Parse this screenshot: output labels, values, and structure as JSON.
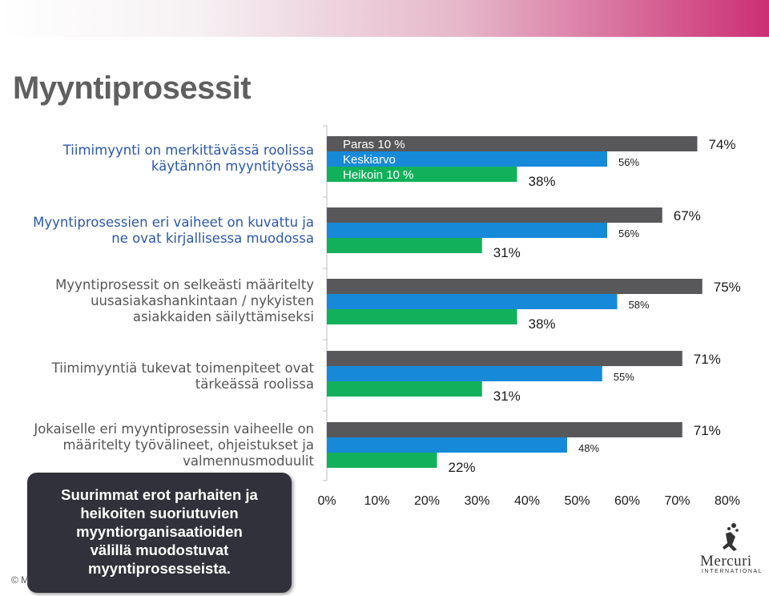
{
  "header": {
    "title": "Myyntiprosessit"
  },
  "categories": [
    {
      "lines": [
        "Tiimimyynti on merkittävässä roolissa",
        "käytännön myyntityössä"
      ],
      "color": "blue"
    },
    {
      "lines": [
        "Myyntiprosessien eri vaiheet on kuvattu ja",
        "ne ovat kirjallisessa muodossa"
      ],
      "color": "blue"
    },
    {
      "lines": [
        "Myyntiprosessit on selkeästi määritelty",
        "uusasiakashankintaan / nykyisten",
        "asiakkaiden säilyttämiseksi"
      ],
      "color": "gray"
    },
    {
      "lines": [
        "Tiimimyyntiä tukevat toimenpiteet ovat",
        "tärkeässä roolissa"
      ],
      "color": "gray"
    },
    {
      "lines": [
        "Jokaiselle eri myyntiprosessin vaiheelle on",
        "määritelty työvälineet, ohjeistukset ja",
        "valmennusmoduulit"
      ],
      "color": "gray"
    }
  ],
  "chart_data": {
    "type": "bar",
    "orientation": "horizontal",
    "categories": [
      "Tiimimyynti on merkittävässä roolissa käytännön myyntityössä",
      "Myyntiprosessien eri vaiheet on kuvattu ja ne ovat kirjallisessa muodossa",
      "Myyntiprosessit on selkeästi määritelty uusasiakashankintaan / nykyisten asiakkaiden säilyttämiseksi",
      "Tiimimyyntiä tukevat toimenpiteet ovat tärkeässä roolissa",
      "Jokaiselle eri myyntiprosessin vaiheelle on määritelty työvälineet, ohjeistukset ja valmennusmoduulit"
    ],
    "series": [
      {
        "name": "Paras 10 %",
        "color": "#58585a",
        "values": [
          74,
          67,
          75,
          71,
          71
        ],
        "labels": [
          "74%",
          "67%",
          "75%",
          "71%",
          "71%"
        ]
      },
      {
        "name": "Keskiarvo",
        "color": "#168ad8",
        "values": [
          56,
          56,
          58,
          55,
          48
        ],
        "labels": [
          "56%",
          "56%",
          "58%",
          "55%",
          "48%"
        ]
      },
      {
        "name": "Heikoin 10 %",
        "color": "#12b05a",
        "values": [
          38,
          31,
          38,
          31,
          22
        ],
        "labels": [
          "38%",
          "31%",
          "38%",
          "31%",
          "22%"
        ]
      }
    ],
    "xlim": [
      0,
      80
    ],
    "xticks": [
      "0%",
      "10%",
      "20%",
      "30%",
      "40%",
      "50%",
      "60%",
      "70%",
      "80%"
    ],
    "legend": "inside-top-left"
  },
  "callout": {
    "lines": [
      "Suurimmat erot parhaiten ja",
      "heikoiten suoriutuvien",
      "myyntiorganisaatioiden",
      "välillä muodostuvat",
      "myyntiprosesseista."
    ]
  },
  "footer": {
    "copyright": "© M"
  },
  "logo": {
    "name": "Mercuri",
    "sub": "INTERNATIONAL"
  }
}
